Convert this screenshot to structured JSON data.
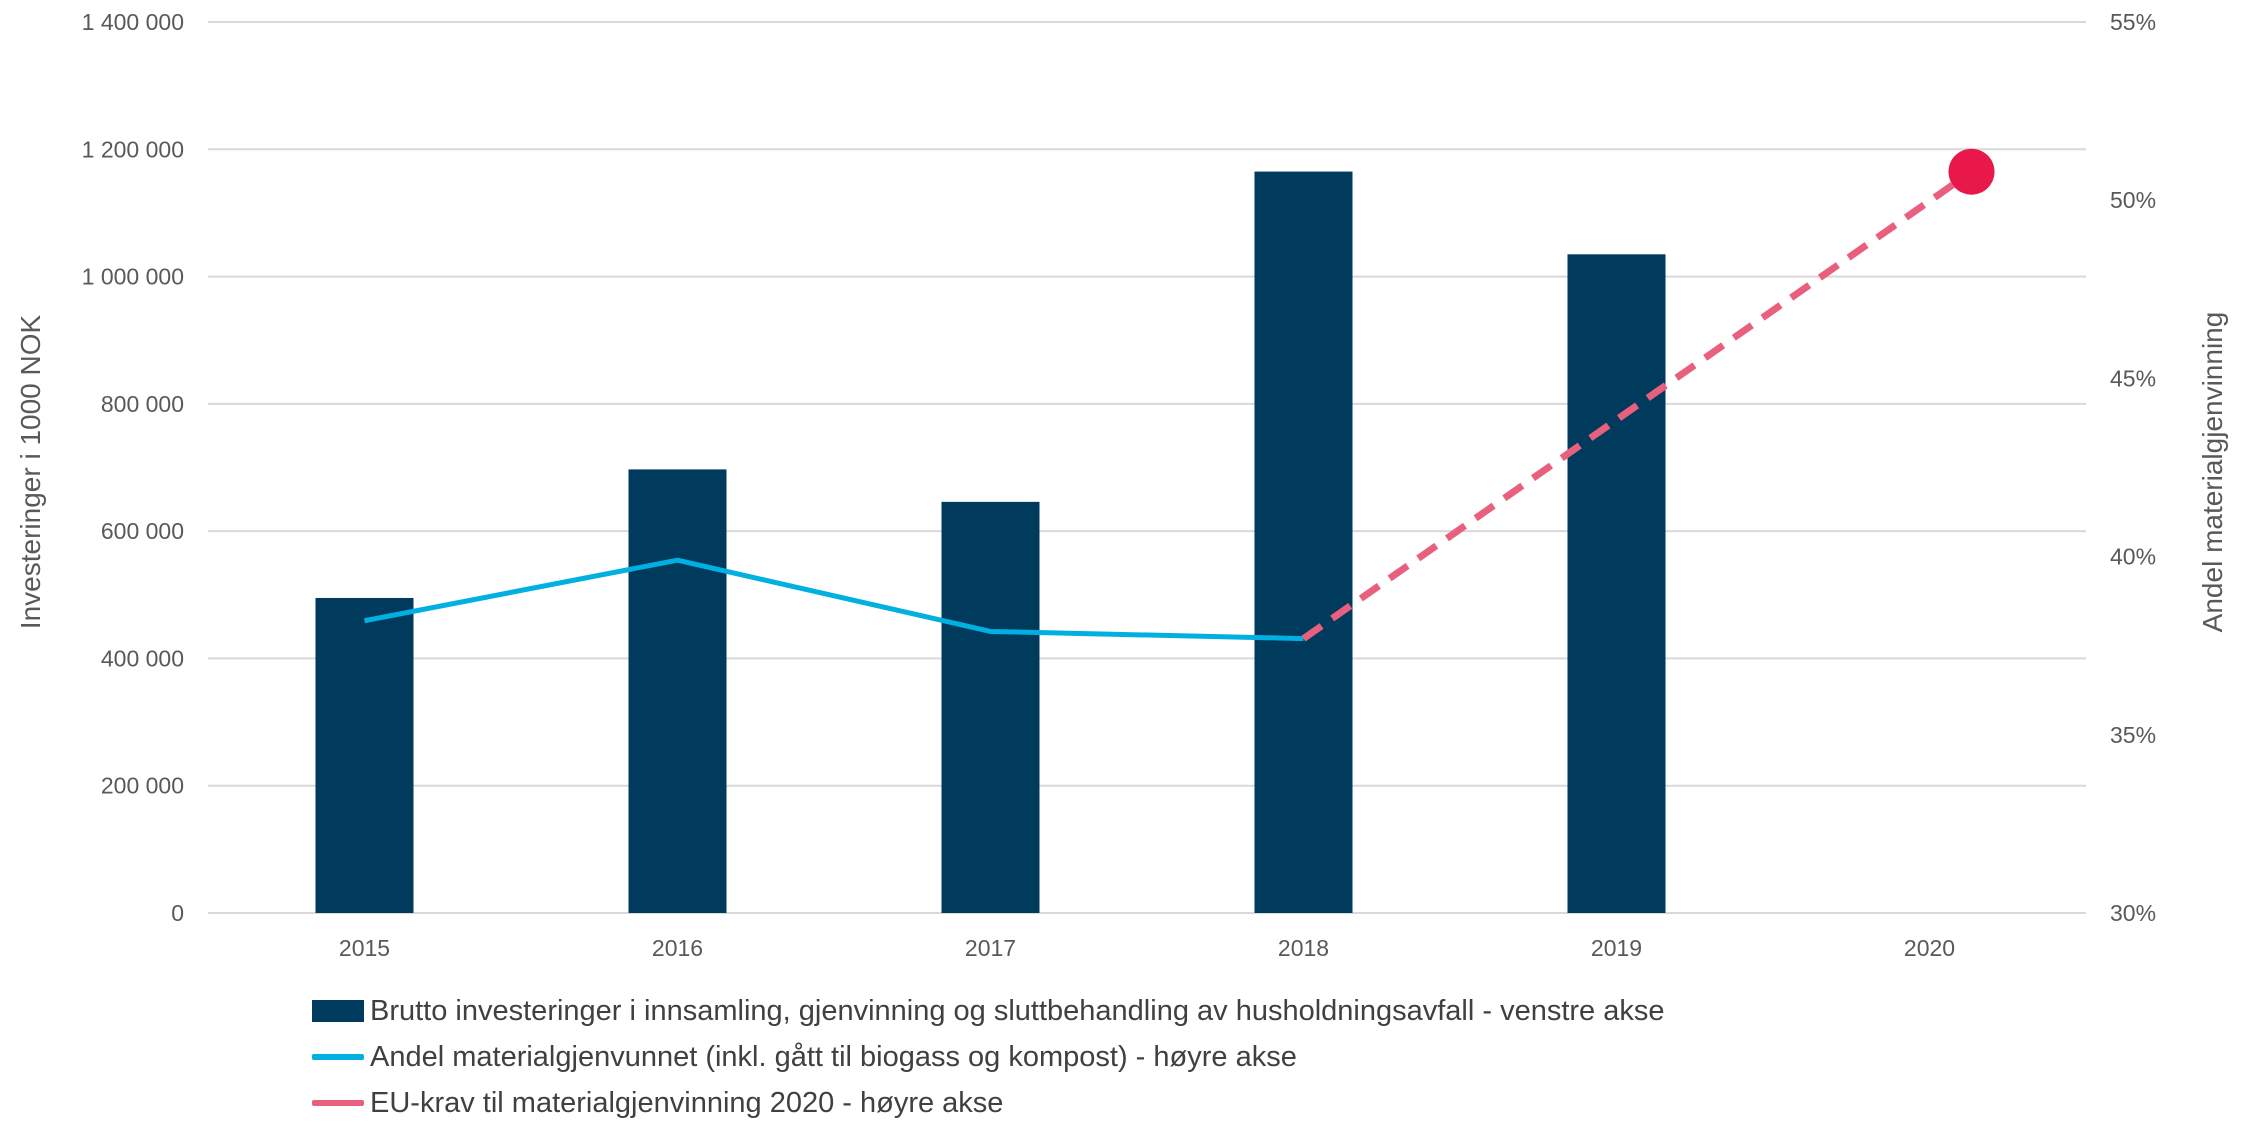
{
  "chart_data": {
    "type": "bar",
    "categories": [
      "2015",
      "2016",
      "2017",
      "2018",
      "2019",
      "2020"
    ],
    "ylabel": "Investeringer i 1000 NOK",
    "y2label": "Andel materialgjenvinning",
    "ylim": [
      0,
      1400000
    ],
    "yticks": [
      "0",
      "200 000",
      "400 000",
      "600 000",
      "800 000",
      "1 000 000",
      "1 200 000",
      "1 400 000"
    ],
    "y2lim": [
      30,
      55
    ],
    "y2ticks": [
      "30%",
      "35%",
      "40%",
      "45%",
      "50%",
      "55%"
    ],
    "grid": true,
    "legend_placement": "bottom",
    "series": [
      {
        "name": "Brutto investeringer i innsamling, gjenvinning og sluttbehandling av husholdningsavfall - venstre akse",
        "type": "bar",
        "axis": "left",
        "color": "#003a5d",
        "values": [
          495000,
          697000,
          646000,
          1165000,
          1035000,
          null
        ]
      },
      {
        "name": "Andel materialgjenvunnet (inkl. gått til biogass og kompost) - høyre akse",
        "type": "line",
        "axis": "right",
        "color": "#00b0e0",
        "values": [
          38.2,
          39.9,
          37.9,
          37.7,
          null,
          null
        ]
      },
      {
        "name": "EU-krav til materialgjenvinning 2020 - høyre akse",
        "type": "line-dashed",
        "axis": "right",
        "color": "#e8607d",
        "marker_color": "#e8184a",
        "x": [
          "2018",
          "2020"
        ],
        "values": [
          37.7,
          50.8
        ]
      }
    ]
  }
}
